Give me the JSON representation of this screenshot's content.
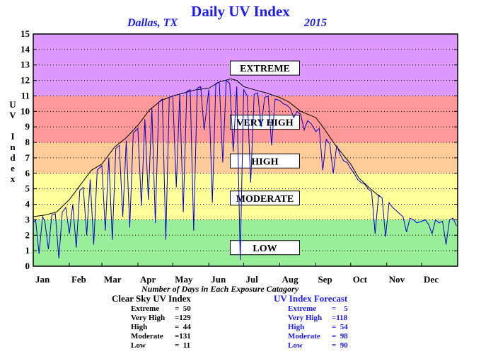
{
  "chart_data": {
    "type": "line",
    "title": "Daily UV Index",
    "location": "Dallas, TX",
    "year": "2015",
    "ylabel": "UV Index",
    "ylim": [
      0,
      15
    ],
    "yticks": [
      "0",
      "1",
      "2",
      "3",
      "4",
      "5",
      "6",
      "7",
      "8",
      "9",
      "10",
      "11",
      "12",
      "13",
      "14",
      "15"
    ],
    "xlim": [
      0,
      365
    ],
    "xticks": [
      {
        "label": "Jan",
        "day": 0
      },
      {
        "label": "Feb",
        "day": 31
      },
      {
        "label": "Mar",
        "day": 59
      },
      {
        "label": "Apr",
        "day": 90
      },
      {
        "label": "May",
        "day": 120
      },
      {
        "label": "Jun",
        "day": 151
      },
      {
        "label": "Jul",
        "day": 181
      },
      {
        "label": "Aug",
        "day": 212
      },
      {
        "label": "Sep",
        "day": 243
      },
      {
        "label": "Oct",
        "day": 273
      },
      {
        "label": "Nov",
        "day": 304
      },
      {
        "label": "Dec",
        "day": 334
      }
    ],
    "grid": true,
    "bands": [
      {
        "label": "LOW",
        "from": 0,
        "to": 3,
        "color": "#99ee99"
      },
      {
        "label": "MODERATE",
        "from": 3,
        "to": 6,
        "color": "#ffff99"
      },
      {
        "label": "HIGH",
        "from": 6,
        "to": 8,
        "color": "#ffcc99"
      },
      {
        "label": "VERY HIGH",
        "from": 8,
        "to": 11,
        "color": "#ff9999"
      },
      {
        "label": "EXTREME",
        "from": 11,
        "to": 15,
        "color": "#dd99ff"
      }
    ],
    "band_label_values": {
      "LOW": 1.2,
      "MODERATE": 4.4,
      "HIGH": 6.8,
      "VERY HIGH": 9.3,
      "EXTREME": 12.8
    },
    "series": [
      {
        "name": "Clear Sky UV Index",
        "color": "#000000",
        "x": [
          0,
          10,
          20,
          31,
          40,
          50,
          59,
          70,
          80,
          90,
          100,
          110,
          120,
          130,
          140,
          151,
          160,
          170,
          175,
          181,
          190,
          200,
          212,
          220,
          230,
          243,
          250,
          260,
          273,
          280,
          290,
          298
        ],
        "y": [
          3.2,
          3.3,
          3.5,
          4.3,
          5.2,
          6.2,
          6.6,
          7.7,
          8.3,
          9.1,
          10.1,
          10.7,
          11.0,
          11.2,
          11.4,
          11.5,
          11.9,
          12.1,
          12.0,
          11.6,
          11.4,
          11.2,
          10.9,
          10.6,
          10.0,
          9.6,
          8.9,
          7.8,
          6.6,
          5.7,
          5.0,
          4.5
        ]
      },
      {
        "name": "UV Index Forecast",
        "color": "#0000cc",
        "x": [
          0,
          2,
          5,
          8,
          10,
          13,
          16,
          19,
          22,
          25,
          28,
          31,
          34,
          37,
          40,
          43,
          46,
          49,
          52,
          55,
          59,
          62,
          65,
          68,
          71,
          74,
          77,
          80,
          83,
          86,
          90,
          93,
          96,
          99,
          102,
          105,
          108,
          111,
          114,
          117,
          120,
          123,
          126,
          129,
          132,
          135,
          138,
          141,
          144,
          147,
          151,
          154,
          157,
          160,
          163,
          166,
          169,
          172,
          175,
          178,
          181,
          184,
          187,
          190,
          193,
          196,
          199,
          202,
          205,
          208,
          212,
          215,
          218,
          221,
          224,
          227,
          230,
          233,
          236,
          239,
          243,
          246,
          249,
          252,
          255,
          258,
          261,
          264,
          267,
          270,
          273,
          276,
          279,
          282,
          285,
          288,
          291,
          294,
          297,
          300,
          303,
          306,
          309,
          312,
          315,
          318,
          321,
          324,
          327,
          330,
          334,
          337,
          340,
          343,
          346,
          349,
          352,
          355,
          358,
          361,
          364
        ],
        "y": [
          2.8,
          3.0,
          0.8,
          3.2,
          2.9,
          1.1,
          3.3,
          3.4,
          0.5,
          3.5,
          3.8,
          2.1,
          4.0,
          1.2,
          4.9,
          5.1,
          2.0,
          5.6,
          1.4,
          6.2,
          6.5,
          2.3,
          7.0,
          1.7,
          7.6,
          7.8,
          3.2,
          8.1,
          2.5,
          8.6,
          8.9,
          3.9,
          9.5,
          4.3,
          10.2,
          2.8,
          10.6,
          10.8,
          1.7,
          10.9,
          11.0,
          5.1,
          11.1,
          3.5,
          11.3,
          11.4,
          2.3,
          11.5,
          11.6,
          8.8,
          11.4,
          4.1,
          11.8,
          11.9,
          6.7,
          12.0,
          11.8,
          7.4,
          11.6,
          0.4,
          11.4,
          11.0,
          5.4,
          11.1,
          11.2,
          9.0,
          10.9,
          11.0,
          7.8,
          10.8,
          10.7,
          10.5,
          10.4,
          10.2,
          9.6,
          10.0,
          9.8,
          8.8,
          9.4,
          9.2,
          8.7,
          8.9,
          6.2,
          8.2,
          7.9,
          6.0,
          7.8,
          7.2,
          6.8,
          6.7,
          6.3,
          6.0,
          5.6,
          5.4,
          5.3,
          5.0,
          4.8,
          2.1,
          4.6,
          4.4,
          1.9,
          4.1,
          3.8,
          3.6,
          3.4,
          3.2,
          2.2,
          3.1,
          3.0,
          2.8,
          2.9,
          3.0,
          2.7,
          2.1,
          3.0,
          2.8,
          2.9,
          1.4,
          3.0,
          3.1,
          2.6
        ]
      }
    ],
    "x_note": "Number of Days in Each Exposure Catagory",
    "counts": {
      "clear_sky": {
        "title": "Clear Sky UV Index",
        "rows": [
          {
            "label": "Extreme",
            "value": "50"
          },
          {
            "label": "Very High",
            "value": "129"
          },
          {
            "label": "High",
            "value": "44"
          },
          {
            "label": "Moderate",
            "value": "131"
          },
          {
            "label": "Low",
            "value": "11"
          }
        ]
      },
      "forecast": {
        "title": "UV Index Forecast",
        "rows": [
          {
            "label": "Extreme",
            "value": "5"
          },
          {
            "label": "Very High",
            "value": "118"
          },
          {
            "label": "High",
            "value": "54"
          },
          {
            "label": "Moderate",
            "value": "98"
          },
          {
            "label": "Low",
            "value": "90"
          }
        ]
      }
    }
  }
}
